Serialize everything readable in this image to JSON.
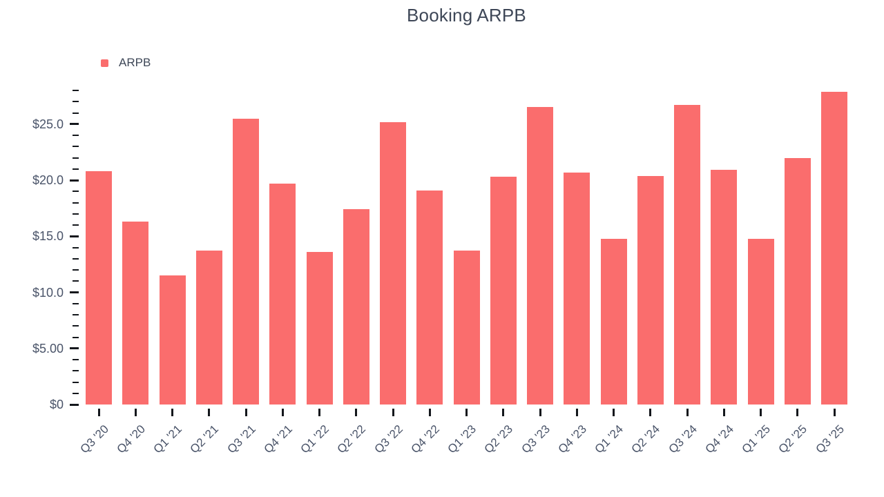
{
  "title": "Booking ARPB",
  "legend": {
    "label": "ARPB"
  },
  "colors": {
    "bar": "#fa6d6d",
    "title_text": "#3e4757",
    "axis_text": "#4a5469",
    "tick": "#14171c",
    "background": "#ffffff"
  },
  "chart_data": {
    "type": "bar",
    "title": "Booking ARPB",
    "categories": [
      "Q3 '20",
      "Q4 '20",
      "Q1 '21",
      "Q2 '21",
      "Q3 '21",
      "Q4 '21",
      "Q1 '22",
      "Q2 '22",
      "Q3 '22",
      "Q4 '22",
      "Q1 '23",
      "Q2 '23",
      "Q3 '23",
      "Q4 '23",
      "Q1 '24",
      "Q2 '24",
      "Q3 '24",
      "Q4 '24",
      "Q1 '25",
      "Q2 '25",
      "Q3 '25"
    ],
    "series": [
      {
        "name": "ARPB",
        "values": [
          20.8,
          16.3,
          11.5,
          13.7,
          25.5,
          19.7,
          13.6,
          17.4,
          25.2,
          19.1,
          13.7,
          20.3,
          26.5,
          20.7,
          14.8,
          20.4,
          26.7,
          20.9,
          14.8,
          22.0,
          27.9
        ]
      }
    ],
    "xlabel": "",
    "ylabel": "",
    "ylim": [
      0,
      28
    ],
    "y_minor_tick_step": 1,
    "y_major_ticks": [
      {
        "value": 0,
        "label": "$0"
      },
      {
        "value": 5,
        "label": "$5.00"
      },
      {
        "value": 10,
        "label": "$10.0"
      },
      {
        "value": 15,
        "label": "$15.0"
      },
      {
        "value": 20,
        "label": "$20.0"
      },
      {
        "value": 25,
        "label": "$25.0"
      }
    ],
    "grid": false,
    "legend_position": "top-left"
  }
}
